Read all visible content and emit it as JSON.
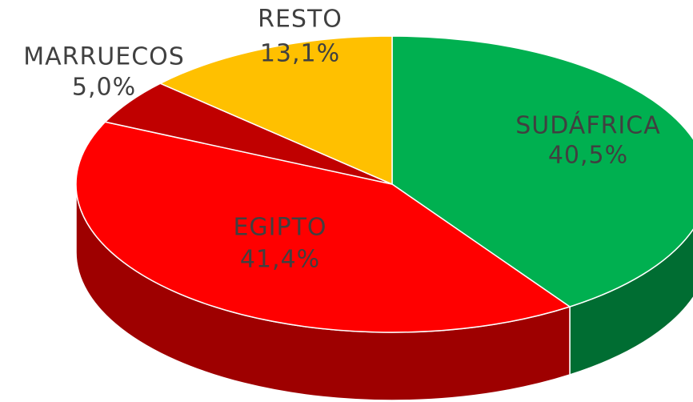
{
  "chart_data": {
    "type": "pie",
    "categories": [
      "SUDÁFRICA",
      "EGIPTO",
      "MARRUECOS",
      "RESTO"
    ],
    "values": [
      40.5,
      41.4,
      5.0,
      13.1
    ],
    "value_labels": [
      "40,5%",
      "41,4%",
      "5,0%",
      "13,1%"
    ],
    "colors": [
      "#00b050",
      "#ff0000",
      "#c00000",
      "#ffc000"
    ]
  }
}
